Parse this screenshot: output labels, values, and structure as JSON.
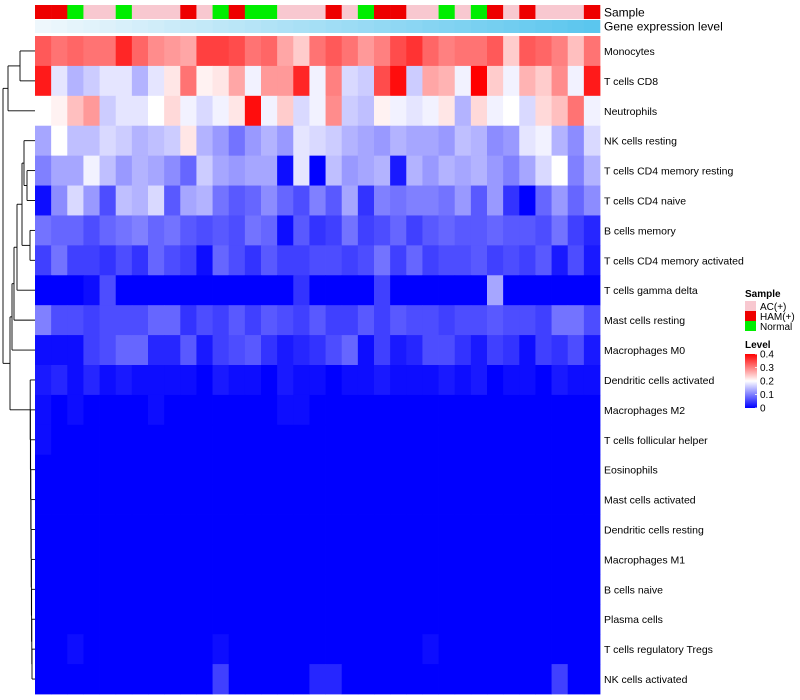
{
  "chart_data": {
    "type": "heatmap",
    "annotation_titles": {
      "sample": "Sample",
      "expression": "Gene expression level"
    },
    "sample_legend": {
      "title": "Sample",
      "entries": [
        {
          "label": "AC(+)",
          "color": "#f8c8d0"
        },
        {
          "label": "HAM(+)",
          "color": "#ee0000"
        },
        {
          "label": "Normal",
          "color": "#00ee00"
        }
      ]
    },
    "level_legend": {
      "title": "Level",
      "ticks": [
        "0.4",
        "0.3",
        "0.2",
        "0.1",
        "0"
      ],
      "tick_values": [
        0.4,
        0.3,
        0.2,
        0.1,
        0
      ],
      "range": [
        0,
        0.4
      ],
      "colors": {
        "low": "#0000ff",
        "mid": "#ffffff",
        "high": "#ff0000",
        "mid_value": 0.2
      }
    },
    "samples": [
      "HAM(+)",
      "HAM(+)",
      "Normal",
      "AC(+)",
      "AC(+)",
      "Normal",
      "AC(+)",
      "AC(+)",
      "AC(+)",
      "HAM(+)",
      "AC(+)",
      "Normal",
      "HAM(+)",
      "Normal",
      "Normal",
      "AC(+)",
      "AC(+)",
      "AC(+)",
      "HAM(+)",
      "AC(+)",
      "Normal",
      "HAM(+)",
      "HAM(+)",
      "AC(+)",
      "AC(+)",
      "Normal",
      "AC(+)",
      "Normal",
      "HAM(+)",
      "AC(+)",
      "HAM(+)",
      "AC(+)",
      "AC(+)",
      "AC(+)",
      "HAM(+)"
    ],
    "expression_gradient": {
      "low": "#eef7fc",
      "high": "#5bc6ee"
    },
    "rows": [
      "Monocytes",
      "T cells CD8",
      "Neutrophils",
      "NK cells resting",
      "T cells CD4 memory resting",
      "T cells CD4 naive",
      "B cells memory",
      "T cells CD4 memory activated",
      "T cells gamma delta",
      "Mast cells resting",
      "Macrophages M0",
      "Dendritic cells activated",
      "Macrophages M2",
      "T cells follicular helper",
      "Eosinophils",
      "Mast cells activated",
      "Dendritic cells resting",
      "Macrophages M1",
      "B cells naive",
      "Plasma cells",
      "T cells regulatory  Tregs",
      "NK cells activated"
    ],
    "values": [
      [
        0.33,
        0.31,
        0.32,
        0.31,
        0.31,
        0.37,
        0.32,
        0.29,
        0.28,
        0.27,
        0.35,
        0.35,
        0.34,
        0.31,
        0.32,
        0.27,
        0.24,
        0.31,
        0.33,
        0.31,
        0.28,
        0.3,
        0.34,
        0.36,
        0.32,
        0.3,
        0.31,
        0.31,
        0.33,
        0.24,
        0.33,
        0.32,
        0.3,
        0.25,
        0.31
      ],
      [
        0.38,
        0.18,
        0.14,
        0.16,
        0.18,
        0.18,
        0.14,
        0.18,
        0.22,
        0.31,
        0.21,
        0.22,
        0.27,
        0.19,
        0.28,
        0.28,
        0.37,
        0.19,
        0.3,
        0.17,
        0.16,
        0.34,
        0.39,
        0.16,
        0.27,
        0.26,
        0.19,
        0.4,
        0.24,
        0.19,
        0.26,
        0.24,
        0.29,
        0.19,
        0.38
      ],
      [
        0.2,
        0.21,
        0.25,
        0.28,
        0.16,
        0.18,
        0.18,
        0.2,
        0.23,
        0.19,
        0.17,
        0.19,
        0.22,
        0.39,
        0.19,
        0.24,
        0.17,
        0.19,
        0.29,
        0.16,
        0.15,
        0.21,
        0.19,
        0.18,
        0.19,
        0.22,
        0.14,
        0.23,
        0.19,
        0.2,
        0.17,
        0.23,
        0.25,
        0.31,
        0.19
      ],
      [
        0.13,
        0.2,
        0.15,
        0.15,
        0.17,
        0.16,
        0.14,
        0.15,
        0.16,
        0.22,
        0.14,
        0.12,
        0.09,
        0.12,
        0.14,
        0.12,
        0.18,
        0.17,
        0.16,
        0.14,
        0.13,
        0.12,
        0.14,
        0.13,
        0.13,
        0.12,
        0.15,
        0.14,
        0.11,
        0.12,
        0.18,
        0.19,
        0.14,
        0.11,
        0.17
      ],
      [
        0.1,
        0.13,
        0.13,
        0.19,
        0.15,
        0.12,
        0.14,
        0.13,
        0.11,
        0.08,
        0.16,
        0.13,
        0.12,
        0.13,
        0.13,
        0.01,
        0.18,
        0.0,
        0.15,
        0.12,
        0.13,
        0.14,
        0.02,
        0.14,
        0.12,
        0.14,
        0.13,
        0.14,
        0.12,
        0.1,
        0.13,
        0.17,
        0.2,
        0.1,
        0.14
      ],
      [
        0.01,
        0.11,
        0.17,
        0.12,
        0.06,
        0.15,
        0.14,
        0.17,
        0.07,
        0.13,
        0.14,
        0.09,
        0.07,
        0.08,
        0.11,
        0.08,
        0.06,
        0.1,
        0.07,
        0.13,
        0.04,
        0.1,
        0.09,
        0.1,
        0.1,
        0.09,
        0.12,
        0.07,
        0.12,
        0.04,
        0.0,
        0.08,
        0.12,
        0.08,
        0.11
      ],
      [
        0.09,
        0.08,
        0.08,
        0.06,
        0.08,
        0.09,
        0.1,
        0.08,
        0.09,
        0.07,
        0.06,
        0.07,
        0.06,
        0.09,
        0.08,
        0.01,
        0.07,
        0.04,
        0.05,
        0.09,
        0.05,
        0.06,
        0.08,
        0.05,
        0.07,
        0.08,
        0.07,
        0.07,
        0.08,
        0.07,
        0.07,
        0.06,
        0.09,
        0.05,
        0.03
      ],
      [
        0.05,
        0.09,
        0.05,
        0.05,
        0.04,
        0.06,
        0.04,
        0.08,
        0.06,
        0.05,
        0.01,
        0.08,
        0.06,
        0.04,
        0.07,
        0.05,
        0.05,
        0.06,
        0.06,
        0.05,
        0.06,
        0.09,
        0.05,
        0.08,
        0.05,
        0.06,
        0.06,
        0.07,
        0.05,
        0.06,
        0.05,
        0.07,
        0.02,
        0.06,
        0.02
      ],
      [
        0.0,
        0.0,
        0.0,
        0.01,
        0.06,
        0.0,
        0.0,
        0.0,
        0.0,
        0.0,
        0.0,
        0.0,
        0.0,
        0.0,
        0.0,
        0.0,
        0.04,
        0.0,
        0.0,
        0.0,
        0.0,
        0.05,
        0.0,
        0.0,
        0.0,
        0.0,
        0.0,
        0.0,
        0.13,
        0.0,
        0.0,
        0.0,
        0.0,
        0.0,
        0.0
      ],
      [
        0.1,
        0.06,
        0.06,
        0.05,
        0.06,
        0.06,
        0.06,
        0.08,
        0.08,
        0.04,
        0.06,
        0.05,
        0.07,
        0.05,
        0.07,
        0.06,
        0.05,
        0.07,
        0.05,
        0.05,
        0.07,
        0.05,
        0.07,
        0.06,
        0.06,
        0.05,
        0.06,
        0.06,
        0.07,
        0.06,
        0.06,
        0.05,
        0.09,
        0.09,
        0.06
      ],
      [
        0.01,
        0.01,
        0.01,
        0.05,
        0.06,
        0.08,
        0.08,
        0.03,
        0.03,
        0.07,
        0.02,
        0.05,
        0.06,
        0.07,
        0.04,
        0.02,
        0.03,
        0.04,
        0.06,
        0.08,
        0.01,
        0.05,
        0.02,
        0.03,
        0.06,
        0.06,
        0.04,
        0.02,
        0.05,
        0.04,
        0.01,
        0.05,
        0.04,
        0.06,
        0.02
      ],
      [
        0.02,
        0.03,
        0.01,
        0.03,
        0.01,
        0.02,
        0.01,
        0.01,
        0.01,
        0.01,
        0.0,
        0.02,
        0.01,
        0.01,
        0.0,
        0.02,
        0.01,
        0.01,
        0.0,
        0.01,
        0.01,
        0.02,
        0.01,
        0.01,
        0.01,
        0.02,
        0.01,
        0.02,
        0.0,
        0.01,
        0.01,
        0.0,
        0.02,
        0.01,
        0.01
      ],
      [
        0.01,
        0.0,
        0.01,
        0.0,
        0.0,
        0.0,
        0.0,
        0.01,
        0.0,
        0.0,
        0.0,
        0.0,
        0.0,
        0.0,
        0.0,
        0.01,
        0.01,
        0.0,
        0.0,
        0.0,
        0.0,
        0.0,
        0.0,
        0.0,
        0.0,
        0.0,
        0.0,
        0.0,
        0.0,
        0.0,
        0.0,
        0.0,
        0.0,
        0.0,
        0.0
      ],
      [
        0.01,
        0.0,
        0.0,
        0.0,
        0.0,
        0.0,
        0.0,
        0.0,
        0.0,
        0.0,
        0.0,
        0.0,
        0.0,
        0.0,
        0.0,
        0.0,
        0.0,
        0.0,
        0.0,
        0.0,
        0.0,
        0.0,
        0.0,
        0.0,
        0.0,
        0.0,
        0.0,
        0.0,
        0.0,
        0.0,
        0.0,
        0.0,
        0.0,
        0.0,
        0.0
      ],
      [
        0.0,
        0.0,
        0.0,
        0.0,
        0.0,
        0.0,
        0.0,
        0.0,
        0.0,
        0.0,
        0.0,
        0.0,
        0.0,
        0.0,
        0.0,
        0.0,
        0.0,
        0.0,
        0.0,
        0.0,
        0.0,
        0.0,
        0.0,
        0.0,
        0.0,
        0.0,
        0.0,
        0.0,
        0.0,
        0.0,
        0.0,
        0.0,
        0.0,
        0.0,
        0.0
      ],
      [
        0.0,
        0.0,
        0.0,
        0.0,
        0.0,
        0.0,
        0.0,
        0.0,
        0.0,
        0.0,
        0.0,
        0.0,
        0.0,
        0.0,
        0.0,
        0.0,
        0.0,
        0.0,
        0.0,
        0.0,
        0.0,
        0.0,
        0.0,
        0.0,
        0.0,
        0.0,
        0.0,
        0.0,
        0.0,
        0.0,
        0.0,
        0.0,
        0.0,
        0.0,
        0.0
      ],
      [
        0.0,
        0.0,
        0.0,
        0.0,
        0.0,
        0.0,
        0.0,
        0.0,
        0.0,
        0.0,
        0.0,
        0.0,
        0.0,
        0.0,
        0.0,
        0.0,
        0.0,
        0.0,
        0.0,
        0.0,
        0.0,
        0.0,
        0.0,
        0.0,
        0.0,
        0.0,
        0.0,
        0.0,
        0.0,
        0.0,
        0.0,
        0.0,
        0.0,
        0.0,
        0.0
      ],
      [
        0.0,
        0.0,
        0.0,
        0.0,
        0.0,
        0.0,
        0.0,
        0.0,
        0.0,
        0.0,
        0.0,
        0.0,
        0.0,
        0.0,
        0.0,
        0.0,
        0.0,
        0.0,
        0.0,
        0.0,
        0.0,
        0.0,
        0.0,
        0.0,
        0.0,
        0.0,
        0.0,
        0.0,
        0.0,
        0.0,
        0.0,
        0.0,
        0.0,
        0.0,
        0.0
      ],
      [
        0.0,
        0.0,
        0.0,
        0.0,
        0.0,
        0.0,
        0.0,
        0.0,
        0.0,
        0.0,
        0.0,
        0.0,
        0.0,
        0.0,
        0.0,
        0.0,
        0.0,
        0.0,
        0.0,
        0.0,
        0.0,
        0.0,
        0.0,
        0.0,
        0.0,
        0.0,
        0.0,
        0.0,
        0.0,
        0.0,
        0.0,
        0.0,
        0.0,
        0.0,
        0.0
      ],
      [
        0.0,
        0.0,
        0.0,
        0.0,
        0.0,
        0.0,
        0.0,
        0.0,
        0.0,
        0.0,
        0.0,
        0.0,
        0.0,
        0.0,
        0.0,
        0.0,
        0.0,
        0.0,
        0.0,
        0.0,
        0.0,
        0.0,
        0.0,
        0.0,
        0.0,
        0.0,
        0.0,
        0.0,
        0.0,
        0.0,
        0.0,
        0.0,
        0.0,
        0.0,
        0.0
      ],
      [
        0.0,
        0.0,
        0.01,
        0.0,
        0.0,
        0.0,
        0.0,
        0.0,
        0.0,
        0.0,
        0.0,
        0.01,
        0.0,
        0.0,
        0.0,
        0.0,
        0.0,
        0.0,
        0.0,
        0.0,
        0.0,
        0.0,
        0.0,
        0.0,
        0.01,
        0.0,
        0.0,
        0.0,
        0.0,
        0.0,
        0.0,
        0.0,
        0.0,
        0.0,
        0.0
      ],
      [
        0.0,
        0.0,
        0.0,
        0.0,
        0.0,
        0.0,
        0.0,
        0.0,
        0.0,
        0.0,
        0.0,
        0.05,
        0.0,
        0.0,
        0.0,
        0.0,
        0.0,
        0.03,
        0.03,
        0.0,
        0.0,
        0.0,
        0.0,
        0.0,
        0.0,
        0.0,
        0.0,
        0.0,
        0.0,
        0.0,
        0.0,
        0.0,
        0.05,
        0.0,
        0.0
      ]
    ]
  }
}
